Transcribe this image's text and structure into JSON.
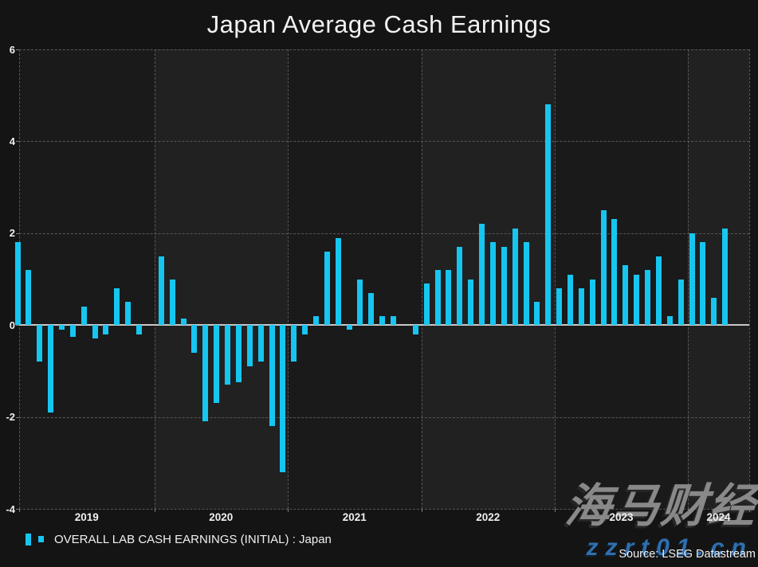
{
  "title": "Japan Average Cash Earnings",
  "legend": {
    "label": "OVERALL LAB CASH EARNINGS (INITIAL) : Japan"
  },
  "source_label": "Source: LSEG Datastream",
  "watermark": {
    "cn_text": "海马财经",
    "url_text": "zzrt01.cn"
  },
  "colors": {
    "bar": "#16C6F0",
    "background": "#141414",
    "panel_dark": "#1a1a1a",
    "panel_light": "#212121",
    "gridline": "#585858",
    "zero_line": "#c9c9c9",
    "text": "#f0f0f0",
    "watermark_gray": "#919191",
    "watermark_blue": "#2f6fae"
  },
  "chart_data": {
    "type": "bar",
    "title": "Japan Average Cash Earnings",
    "series_label": "OVERALL LAB CASH EARNINGS (INITIAL) : Japan",
    "frequency": "monthly",
    "x_start": "2018-12",
    "x_year_labels": [
      "2019",
      "2020",
      "2021",
      "2022",
      "2023",
      "2024"
    ],
    "ylim": [
      -4,
      6
    ],
    "yticks": [
      6,
      4,
      2,
      0,
      -2,
      -4
    ],
    "grid": "dashed",
    "legend_position": "bottom-left",
    "values": [
      1.8,
      1.2,
      -0.8,
      -1.9,
      -0.1,
      -0.25,
      0.4,
      -0.3,
      -0.2,
      0.8,
      0.5,
      -0.2,
      0.0,
      1.5,
      1.0,
      0.15,
      -0.6,
      -2.1,
      -1.7,
      -1.3,
      -1.25,
      -0.9,
      -0.8,
      -2.2,
      -3.2,
      -0.8,
      -0.2,
      0.2,
      1.6,
      1.9,
      -0.1,
      1.0,
      0.7,
      0.2,
      0.2,
      0.0,
      -0.2,
      0.9,
      1.2,
      1.2,
      1.7,
      1.0,
      2.2,
      1.8,
      1.7,
      2.1,
      1.8,
      0.5,
      4.8,
      0.8,
      1.1,
      0.8,
      1.0,
      2.5,
      2.3,
      1.3,
      1.1,
      1.2,
      1.5,
      0.2,
      1.0,
      2.0,
      1.8,
      0.6,
      2.1
    ]
  }
}
